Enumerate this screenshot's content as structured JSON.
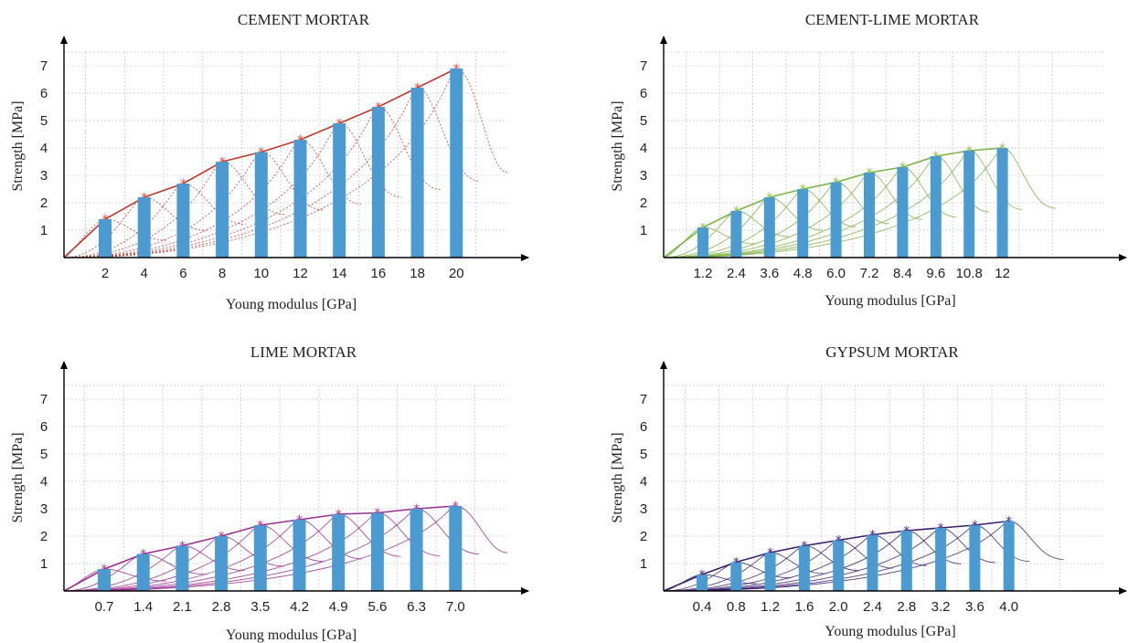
{
  "chart_data": [
    {
      "id": "cement",
      "type": "bar",
      "title": "CEMENT MORTAR",
      "xlabel": "Young modulus [GPa]",
      "ylabel": "Strength [MPa]",
      "categories": [
        "2",
        "4",
        "6",
        "8",
        "10",
        "12",
        "14",
        "16",
        "18",
        "20"
      ],
      "values": [
        1.4,
        2.2,
        2.7,
        3.5,
        3.85,
        4.3,
        4.9,
        5.5,
        6.2,
        6.9
      ],
      "ylim": [
        0,
        7.5
      ],
      "yticks": [
        1,
        2,
        3,
        4,
        5,
        6,
        7
      ],
      "grid": true,
      "colors": {
        "bar": "#4a9bd1",
        "curve": "#c0392b",
        "marker": "#e74c3c"
      }
    },
    {
      "id": "cement-lime",
      "type": "bar",
      "title": "CEMENT-LIME MORTAR",
      "xlabel": "Young modulus [GPa]",
      "ylabel": "Strength [MPa]",
      "categories": [
        "1.2",
        "2.4",
        "3.6",
        "4.8",
        "6.0",
        "7.2",
        "8.4",
        "9.6",
        "10.8",
        "12"
      ],
      "values": [
        1.1,
        1.7,
        2.2,
        2.5,
        2.75,
        3.1,
        3.3,
        3.7,
        3.9,
        4.0
      ],
      "ylim": [
        0,
        7.5
      ],
      "yticks": [
        1,
        2,
        3,
        4,
        5,
        6,
        7
      ],
      "grid": true,
      "colors": {
        "bar": "#4a9bd1",
        "curve": "#7cb342",
        "marker": "#8bc34a"
      }
    },
    {
      "id": "lime",
      "type": "bar",
      "title": "LIME MORTAR",
      "xlabel": "Young modulus [GPa]",
      "ylabel": "Strength [MPa]",
      "categories": [
        "0.7",
        "1.4",
        "2.1",
        "2.8",
        "3.5",
        "4.2",
        "4.9",
        "5.6",
        "6.3",
        "7.0"
      ],
      "values": [
        0.8,
        1.35,
        1.65,
        2.0,
        2.4,
        2.6,
        2.8,
        2.85,
        3.0,
        3.1
      ],
      "ylim": [
        0,
        7.5
      ],
      "yticks": [
        1,
        2,
        3,
        4,
        5,
        6,
        7
      ],
      "grid": true,
      "colors": {
        "bar": "#4a9bd1",
        "curve": "#9c2f8f",
        "marker": "#a8389a"
      }
    },
    {
      "id": "gypsum",
      "type": "bar",
      "title": "GYPSUM  MORTAR",
      "xlabel": "Young modulus [GPa]",
      "ylabel": "Strength [MPa]",
      "categories": [
        "0.4",
        "0.8",
        "1.2",
        "1.6",
        "2.0",
        "2.4",
        "2.8",
        "3.2",
        "3.6",
        "4.0"
      ],
      "values": [
        0.6,
        1.05,
        1.4,
        1.65,
        1.85,
        2.05,
        2.2,
        2.3,
        2.4,
        2.55
      ],
      "ylim": [
        0,
        7.5
      ],
      "yticks": [
        1,
        2,
        3,
        4,
        5,
        6,
        7
      ],
      "grid": true,
      "colors": {
        "bar": "#4a9bd1",
        "curve": "#3b1f6e",
        "marker": "#4b2a8a"
      }
    }
  ]
}
